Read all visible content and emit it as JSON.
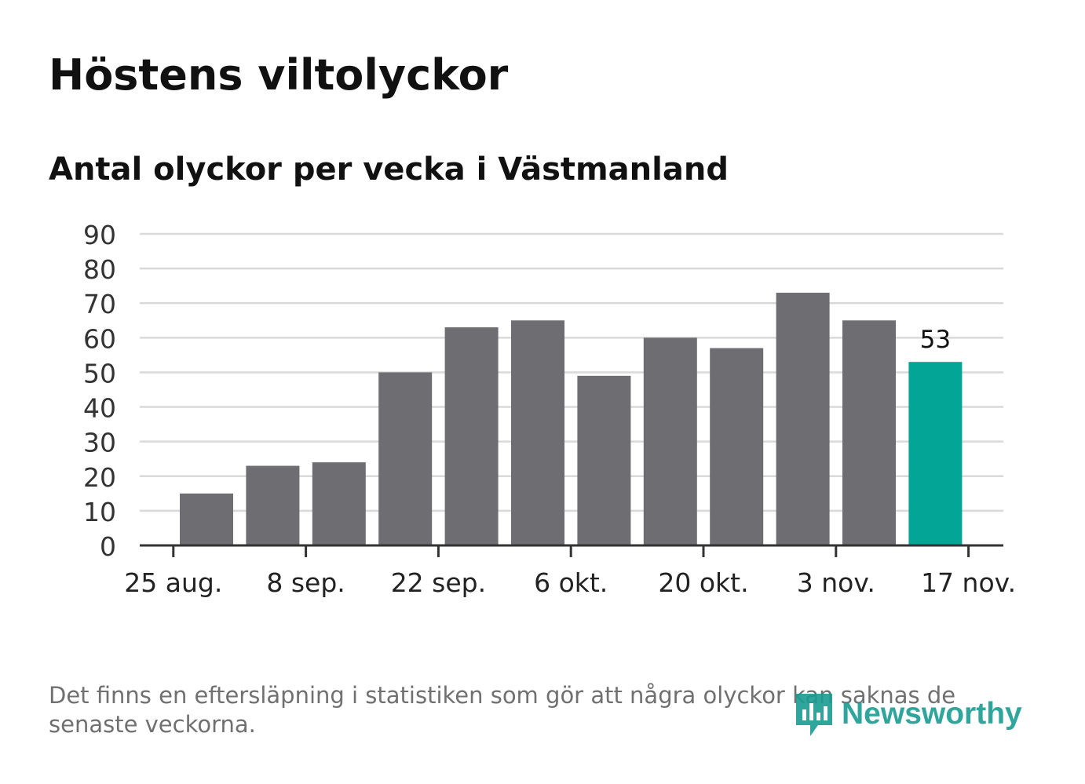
{
  "title": "Höstens viltolyckor",
  "subtitle": "Antal olyckor per vecka i Västmanland",
  "footnote": "Det finns en eftersläpning i statistiken som gör att några olyckor kan saknas de senaste veckorna.",
  "logo": {
    "text": "Newsworthy",
    "icon": "newsworthy-logo-icon"
  },
  "colors": {
    "bar": "#6e6d72",
    "highlight": "#02a596",
    "grid": "#d9d9d9",
    "axis": "#333333"
  },
  "chart_data": {
    "type": "bar",
    "title": "Antal olyckor per vecka i Västmanland",
    "xlabel": "",
    "ylabel": "",
    "ylim": [
      0,
      90
    ],
    "yticks": [
      "0",
      "10",
      "20",
      "30",
      "40",
      "50",
      "60",
      "70",
      "80",
      "90"
    ],
    "xticks": [
      "25 aug.",
      "8 sep.",
      "22 sep.",
      "6 okt.",
      "20 okt.",
      "3 nov.",
      "17 nov."
    ],
    "values": [
      15,
      23,
      24,
      50,
      63,
      65,
      49,
      60,
      57,
      73,
      65,
      53
    ],
    "highlight_index": 11,
    "highlight_label": "53",
    "grid": true
  }
}
